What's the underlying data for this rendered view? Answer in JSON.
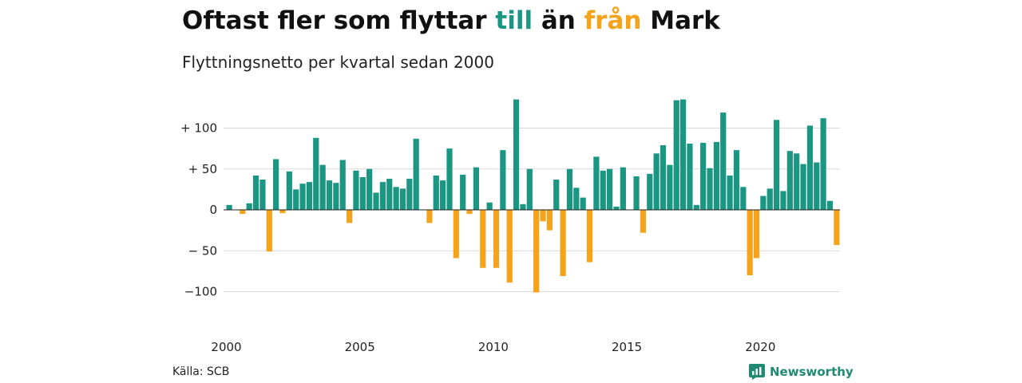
{
  "header": {
    "title_parts": [
      "Oftast fler som flyttar ",
      "till",
      " än ",
      "från",
      " Mark"
    ],
    "subtitle": "Flyttningsnetto per kvartal sedan 2000"
  },
  "footer": {
    "source": "Källa: SCB",
    "brand": "Newsworthy",
    "brand_icon": "newsworthy-logo-icon"
  },
  "colors": {
    "positive": "#1a9683",
    "negative": "#f5a31a",
    "title_till": "#1a9683",
    "title_fran": "#f5a31a",
    "grid": "#d9d9d9",
    "zero_line": "#222222"
  },
  "chart_data": {
    "type": "bar",
    "title": "Oftast fler som flyttar till än från Mark",
    "subtitle": "Flyttningsnetto per kvartal sedan 2000",
    "xlabel": "",
    "ylabel": "",
    "x_start": "2000 Q1",
    "x_ticks": [
      "2000",
      "2005",
      "2010",
      "2015",
      "2020"
    ],
    "y_ticks": [
      {
        "value": 100,
        "label": "+ 100"
      },
      {
        "value": 50,
        "label": "+  50"
      },
      {
        "value": 0,
        "label": "0"
      },
      {
        "value": -50,
        "label": "− 50"
      },
      {
        "value": -100,
        "label": "−100"
      }
    ],
    "ylim": [
      -130,
      140
    ],
    "grid": true,
    "values": [
      6,
      0,
      -5,
      8,
      42,
      37,
      -51,
      62,
      -4,
      47,
      25,
      32,
      34,
      88,
      55,
      36,
      33,
      61,
      -16,
      48,
      40,
      50,
      21,
      34,
      38,
      28,
      26,
      38,
      87,
      0,
      -16,
      42,
      36,
      75,
      -59,
      43,
      -5,
      52,
      -71,
      9,
      -71,
      73,
      -89,
      135,
      7,
      50,
      -101,
      -14,
      -25,
      37,
      -81,
      50,
      27,
      15,
      -64,
      65,
      48,
      50,
      4,
      52,
      0,
      41,
      -28,
      44,
      69,
      79,
      55,
      134,
      135,
      81,
      6,
      82,
      51,
      83,
      119,
      42,
      73,
      28,
      -80,
      -59,
      17,
      26,
      110,
      23,
      72,
      69,
      56,
      103,
      58,
      112,
      11,
      -43
    ]
  }
}
